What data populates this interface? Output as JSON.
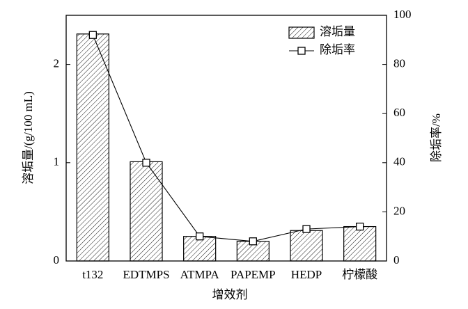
{
  "chart_data": {
    "type": "bar",
    "categories": [
      "t132",
      "EDTMPS",
      "ATMPA",
      "PAPEMP",
      "HEDP",
      "柠檬酸"
    ],
    "x_label": "增效剂",
    "y_label": "溶垢量/(g/100 mL)",
    "y2_label": "除垢率/%",
    "ylim": [
      0,
      2.5
    ],
    "yticks": [
      0,
      1,
      2
    ],
    "y2lim": [
      0,
      100
    ],
    "y2ticks": [
      0,
      20,
      40,
      60,
      80,
      100
    ],
    "legend": "upper right",
    "series": [
      {
        "name": "溶垢量",
        "type": "bar",
        "color": "#000000",
        "values": [
          2.31,
          1.01,
          0.25,
          0.2,
          0.31,
          0.35
        ]
      },
      {
        "name": "除垢率",
        "type": "line",
        "axis": "y2",
        "color": "#000000",
        "values": [
          92,
          40,
          10,
          8,
          13,
          14
        ]
      }
    ]
  }
}
